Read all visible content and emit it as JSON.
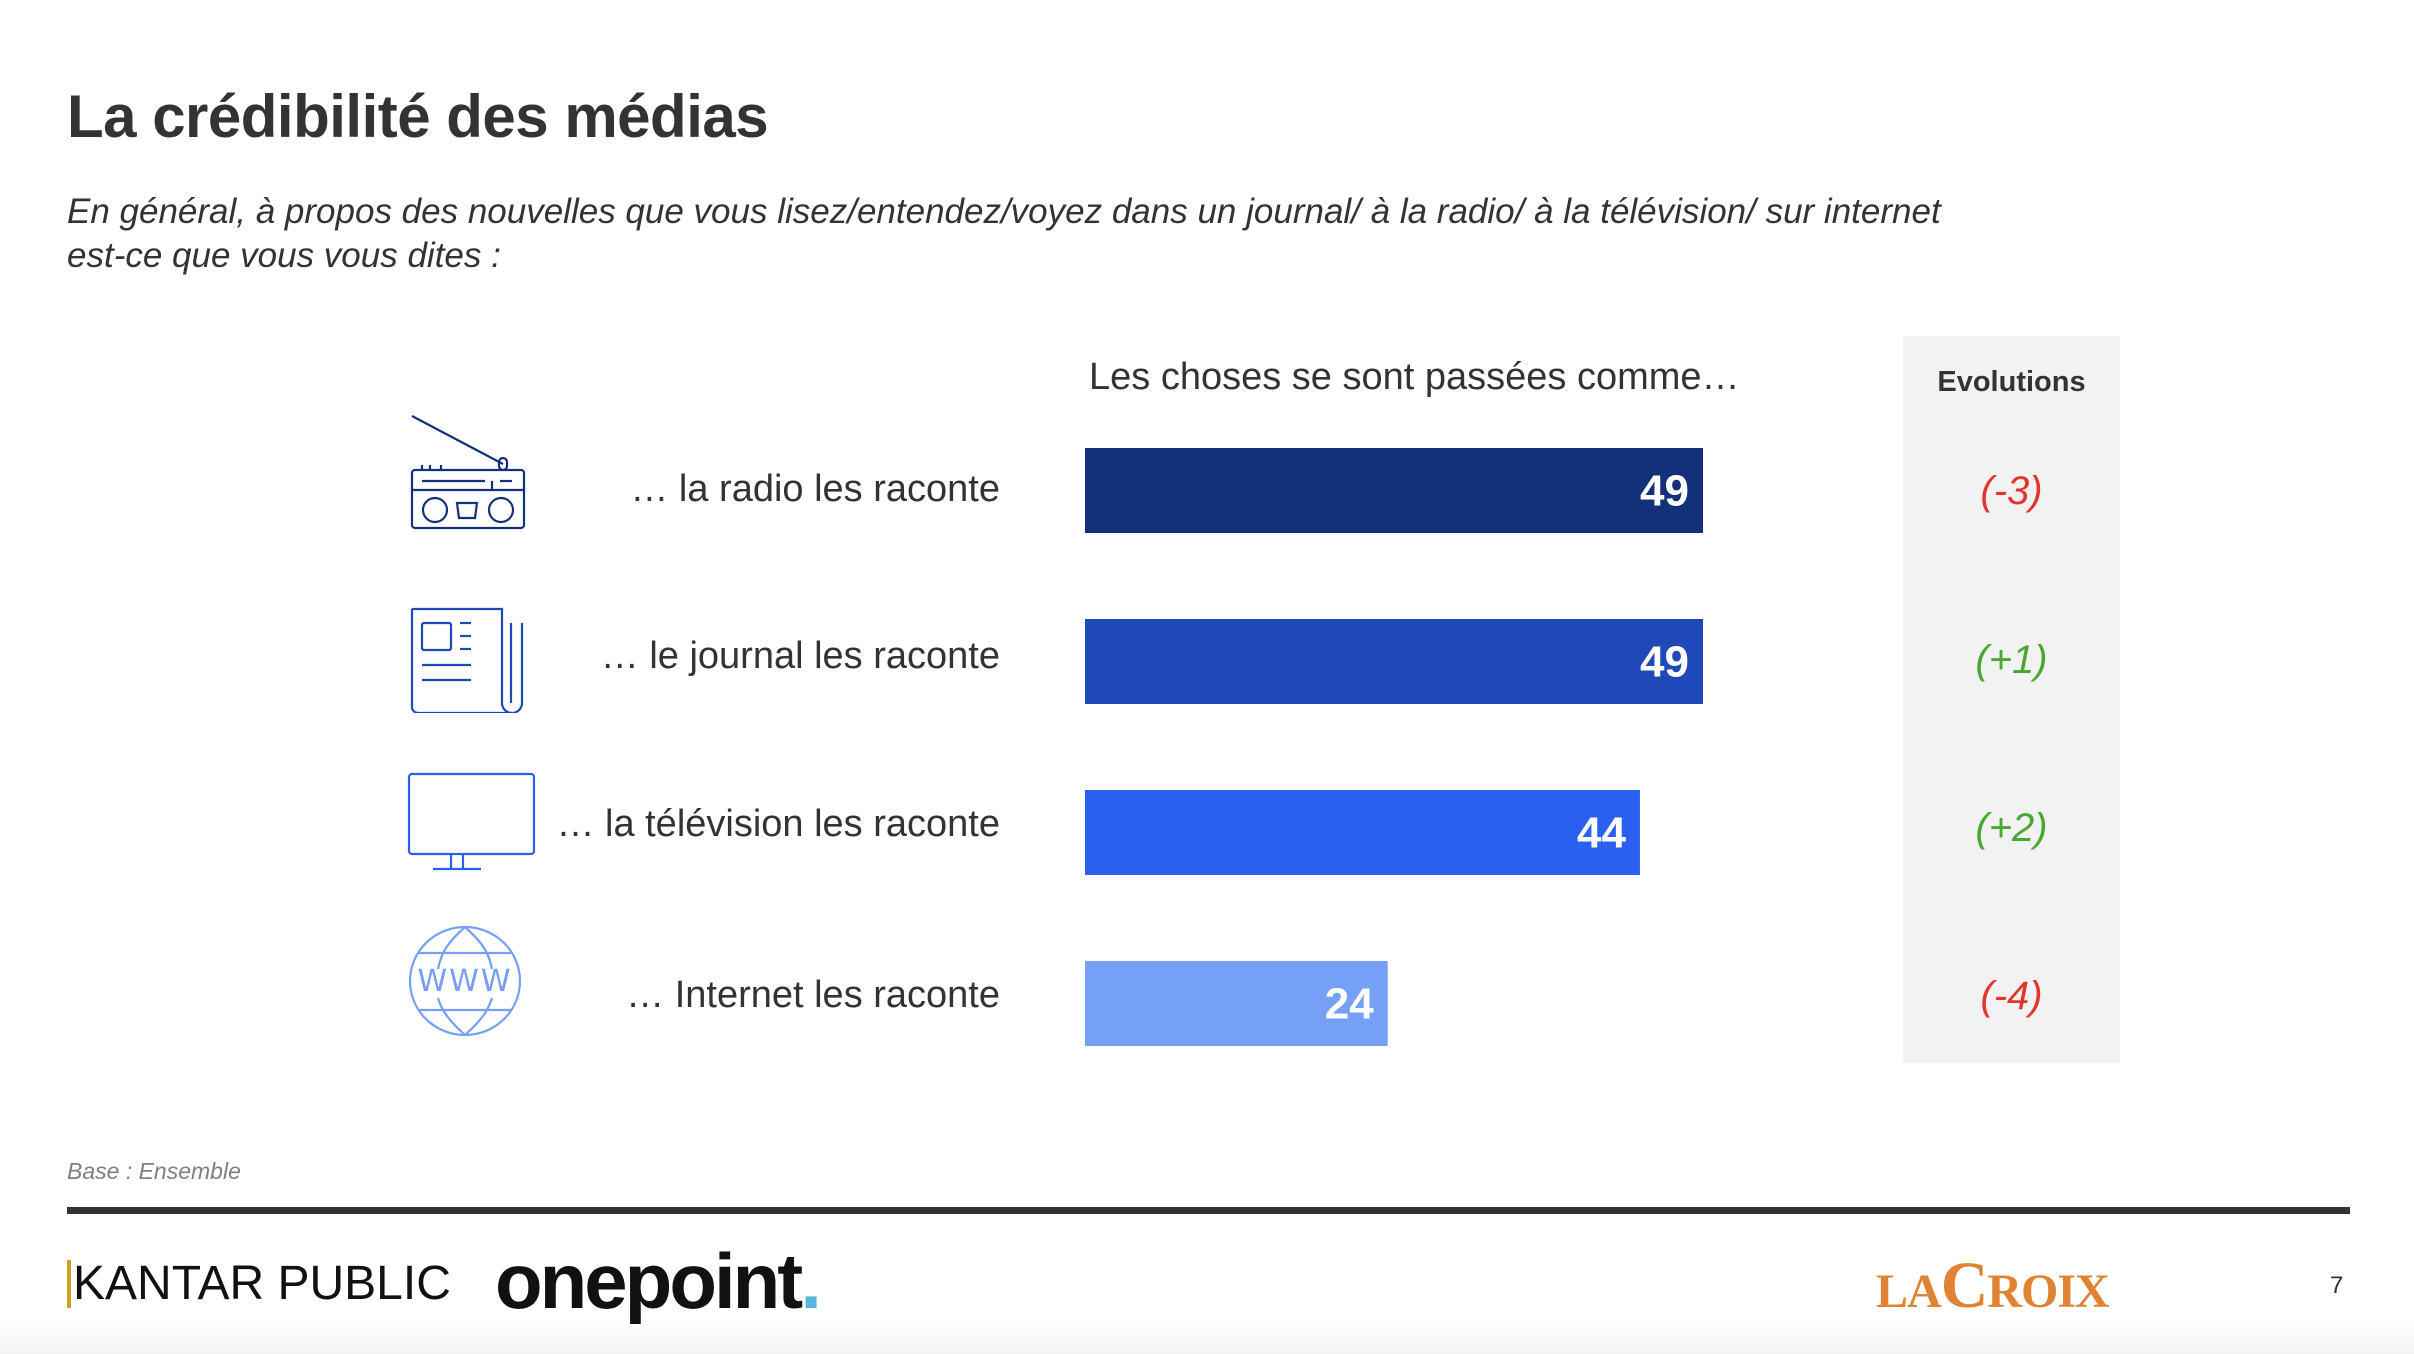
{
  "slide": {
    "title": "La crédibilité des médias",
    "subtitle_line1": "En général, à propos des nouvelles que vous lisez/entendez/voyez dans un journal/ à la radio/ à la télévision/ sur internet",
    "subtitle_line2": "est-ce que vous vous dites :",
    "column_header": "Les choses se sont passées comme…",
    "evolutions_header": "Evolutions",
    "base_note": "Base : Ensemble",
    "page_number": "7"
  },
  "rows": [
    {
      "label": "… la radio les raconte",
      "icon": "radio-icon",
      "value": 49,
      "evolution": "(-3)",
      "evolution_color": "#e3352b"
    },
    {
      "label": "… le journal les raconte",
      "icon": "newspaper-icon",
      "value": 49,
      "evolution": "(+1)",
      "evolution_color": "#4aa832"
    },
    {
      "label": "… la télévision les raconte",
      "icon": "television-icon",
      "value": 44,
      "evolution": "(+2)",
      "evolution_color": "#4aa832"
    },
    {
      "label": "… Internet les raconte",
      "icon": "globe-www-icon",
      "value": 24,
      "evolution": "(-4)",
      "evolution_color": "#e3352b"
    }
  ],
  "chart_data": {
    "type": "bar",
    "orientation": "horizontal",
    "title": "La crédibilité des médias",
    "subtitle": "Les choses se sont passées comme…",
    "categories": [
      "… la radio les raconte",
      "… le journal les raconte",
      "… la télévision les raconte",
      "… Internet les raconte"
    ],
    "values": [
      49,
      49,
      44,
      24
    ],
    "bar_colors": [
      "#13307a",
      "#1f48b8",
      "#2a60f0",
      "#76a0f5"
    ],
    "evolutions": [
      "(-3)",
      "(+1)",
      "(+2)",
      "(-4)"
    ],
    "unit": "%",
    "xlim": [
      0,
      100
    ],
    "grid": false,
    "legend": "none"
  },
  "footer": {
    "logo_left_1": "KANTAR PUBLIC",
    "logo_left_2_text": "onepoint",
    "logo_left_2_dot": ".",
    "logo_right_small_1": "LA",
    "logo_right_big": "C",
    "logo_right_small_2": "ROIX"
  }
}
